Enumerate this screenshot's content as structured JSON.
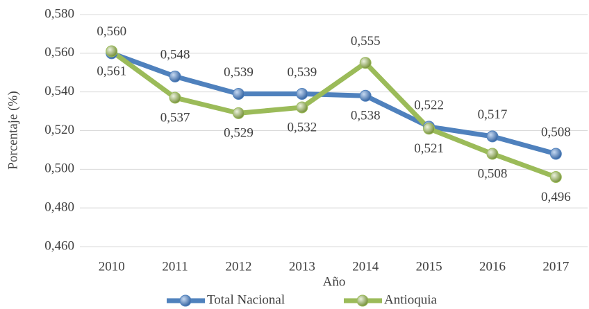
{
  "chart_data": {
    "type": "line",
    "x_label": "Año",
    "y_label": "Porcentaje (%)",
    "categories": [
      "2010",
      "2011",
      "2012",
      "2013",
      "2014",
      "2015",
      "2016",
      "2017"
    ],
    "series": [
      {
        "name": "Total Nacional",
        "color": "#4f81bd",
        "values": [
          0.56,
          0.548,
          0.539,
          0.539,
          0.538,
          0.522,
          0.517,
          0.508
        ],
        "value_labels": [
          "0,560",
          "0,548",
          "0,539",
          "0,539",
          "0,538",
          "0,522",
          "0,517",
          "0,508"
        ]
      },
      {
        "name": "Antioquia",
        "color": "#9bbb59",
        "values": [
          0.561,
          0.537,
          0.529,
          0.532,
          0.555,
          0.521,
          0.508,
          0.496
        ],
        "value_labels": [
          "0,561",
          "0,537",
          "0,529",
          "0,532",
          "0,555",
          "0,521",
          "0,508",
          "0,496"
        ]
      }
    ],
    "ylim": [
      0.46,
      0.58
    ],
    "yticks": [
      {
        "value": 0.46,
        "label": "0,460"
      },
      {
        "value": 0.48,
        "label": "0,480"
      },
      {
        "value": 0.5,
        "label": "0,500"
      },
      {
        "value": 0.52,
        "label": "0,520"
      },
      {
        "value": 0.54,
        "label": "0,540"
      },
      {
        "value": 0.56,
        "label": "0,560"
      },
      {
        "value": 0.58,
        "label": "0,580"
      }
    ],
    "grid": true,
    "legend": "bottom"
  }
}
